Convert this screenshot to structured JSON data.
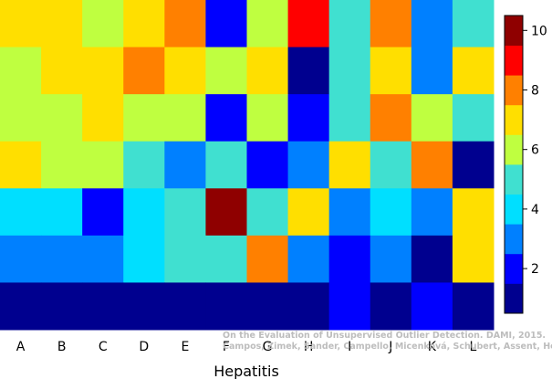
{
  "chart_data": {
    "type": "heatmap",
    "xlabel": "Hepatitis",
    "ylabel": "",
    "title": "",
    "categories": [
      "A",
      "B",
      "C",
      "D",
      "E",
      "F",
      "G",
      "H",
      "I",
      "J",
      "K",
      "L"
    ],
    "rows_top_to_bottom": [
      [
        7,
        7,
        6,
        7,
        8,
        2,
        6,
        9,
        5,
        8,
        3,
        5
      ],
      [
        6,
        7,
        7,
        8,
        7,
        6,
        7,
        1,
        5,
        7,
        3,
        7
      ],
      [
        6,
        6,
        7,
        6,
        6,
        2,
        6,
        2,
        5,
        8,
        6,
        5
      ],
      [
        7,
        6,
        6,
        5,
        3,
        5,
        2,
        3,
        7,
        5,
        8,
        1
      ],
      [
        4,
        4,
        2,
        4,
        5,
        10,
        5,
        7,
        3,
        4,
        3,
        7
      ],
      [
        3,
        3,
        3,
        4,
        5,
        5,
        8,
        3,
        2,
        3,
        1,
        7
      ],
      [
        1,
        1,
        1,
        1,
        1,
        1,
        1,
        1,
        2,
        1,
        2,
        1
      ]
    ],
    "colorbar": {
      "min": 1,
      "max": 10,
      "tick_labels": [
        "2",
        "4",
        "6",
        "8",
        "10"
      ],
      "tick_values": [
        2,
        4,
        6,
        8,
        10
      ],
      "colors": [
        "#00008F",
        "#0000FF",
        "#0080FF",
        "#00DFFF",
        "#40E0D0",
        "#BFFF40",
        "#FFDF00",
        "#FF8000",
        "#FF0000",
        "#8F0000"
      ]
    }
  },
  "watermark": {
    "line1": "On the Evaluation of Unsupervised Outlier Detection. DAMI, 2015.",
    "line2": "Campos, Zimek, Sander, Campello, Micenková, Schubert, Assent, Houle"
  }
}
